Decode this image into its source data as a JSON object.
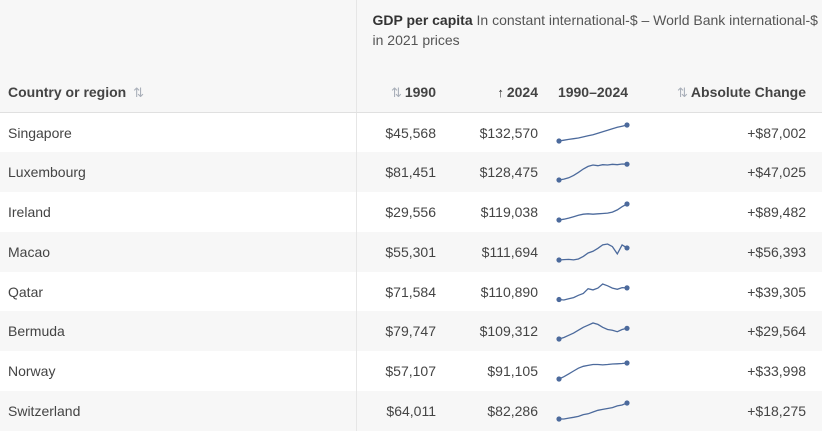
{
  "table": {
    "group_header": {
      "title": "GDP per capita",
      "subtitle": "In constant international-$ – World Bank international-$ in 2021 prices"
    },
    "columns": {
      "country": "Country or region",
      "y1990": "1990",
      "y2024": "2024",
      "spark": "1990–2024",
      "change": "Absolute Change"
    },
    "sort_icons": {
      "country": "sort-both-icon",
      "y1990": "sort-both-icon",
      "y2024": "sort-up-icon",
      "change": "sort-both-icon"
    },
    "spark_color": "#4c6a9c",
    "rows": [
      {
        "country": "Singapore",
        "v1990": "$45,568",
        "v2024": "$132,570",
        "change": "+$87,002",
        "trend": [
          45568,
          50000,
          54000,
          58000,
          62000,
          68000,
          74000,
          80000,
          88000,
          96000,
          104000,
          112000,
          120000,
          126000,
          132570
        ]
      },
      {
        "country": "Luxembourg",
        "v1990": "$81,451",
        "v2024": "$128,475",
        "change": "+$47,025",
        "trend": [
          81451,
          84000,
          88000,
          95000,
          104000,
          114000,
          122000,
          126000,
          124000,
          127000,
          126000,
          128000,
          127000,
          129000,
          128475
        ]
      },
      {
        "country": "Ireland",
        "v1990": "$29,556",
        "v2024": "$119,038",
        "change": "+$89,482",
        "trend": [
          29556,
          34000,
          40000,
          48000,
          56000,
          62000,
          64000,
          62000,
          64000,
          66000,
          68000,
          74000,
          86000,
          104000,
          119038
        ]
      },
      {
        "country": "Macao",
        "v1990": "$55,301",
        "v2024": "$111,694",
        "change": "+$56,393",
        "trend": [
          55301,
          57000,
          58000,
          56000,
          60000,
          72000,
          88000,
          96000,
          110000,
          126000,
          130000,
          118000,
          84000,
          126000,
          111694
        ]
      },
      {
        "country": "Qatar",
        "v1990": "$71,584",
        "v2024": "$110,890",
        "change": "+$39,305",
        "trend": [
          71584,
          70000,
          74000,
          78000,
          86000,
          92000,
          108000,
          104000,
          110000,
          124000,
          118000,
          110000,
          106000,
          112000,
          110890
        ]
      },
      {
        "country": "Bermuda",
        "v1990": "$79,747",
        "v2024": "$109,312",
        "change": "+$29,564",
        "trend": [
          79747,
          84000,
          90000,
          96000,
          104000,
          112000,
          118000,
          124000,
          120000,
          112000,
          106000,
          104000,
          100000,
          106000,
          109312
        ]
      },
      {
        "country": "Norway",
        "v1990": "$57,107",
        "v2024": "$91,105",
        "change": "+$33,998",
        "trend": [
          57107,
          62000,
          68000,
          74000,
          80000,
          84000,
          86000,
          88000,
          88000,
          87000,
          88000,
          89000,
          89500,
          90000,
          91105
        ]
      },
      {
        "country": "Switzerland",
        "v1990": "$64,011",
        "v2024": "$82,286",
        "change": "+$18,275",
        "trend": [
          64011,
          64000,
          65000,
          66000,
          67000,
          69000,
          70000,
          72000,
          74000,
          75000,
          76000,
          77000,
          79000,
          80000,
          82286
        ]
      }
    ]
  }
}
